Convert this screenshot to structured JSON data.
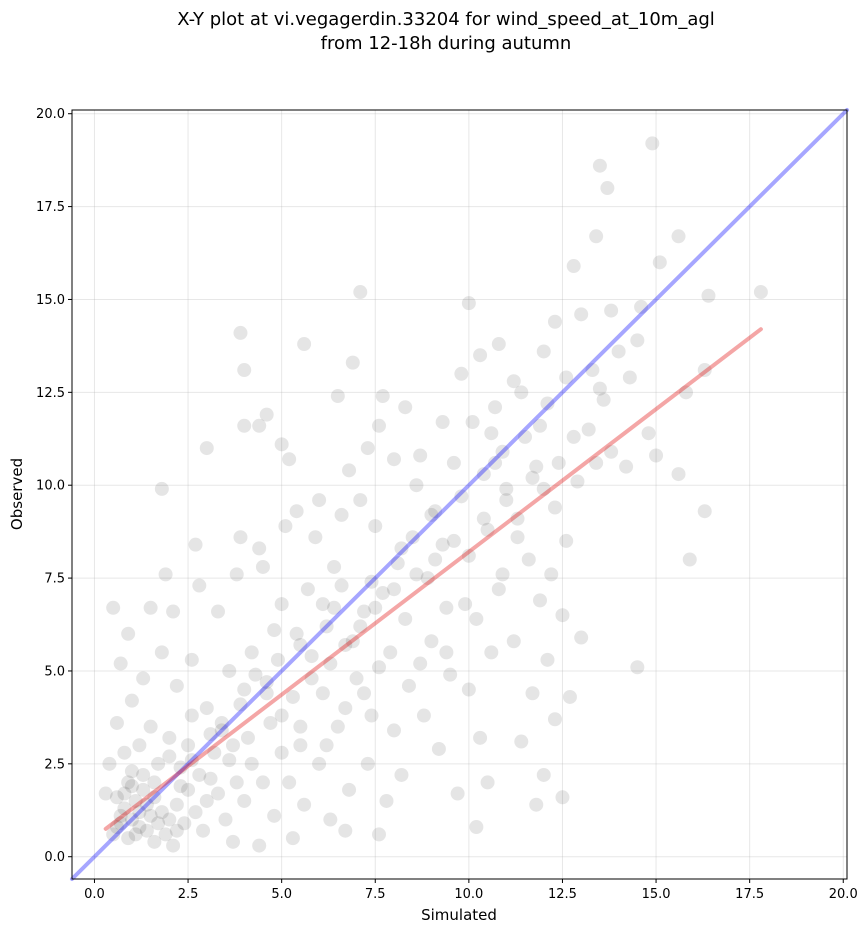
{
  "chart_data": {
    "type": "scatter",
    "title_lines": [
      "X-Y plot at vi.vegagerdin.33204 for wind_speed_at_10m_agl",
      "from 12-18h during autumn"
    ],
    "xlabel": "Simulated",
    "ylabel": "Observed",
    "xlim": [
      -0.6,
      20.1
    ],
    "ylim": [
      -0.6,
      20.1
    ],
    "xticks": [
      0.0,
      2.5,
      5.0,
      7.5,
      10.0,
      12.5,
      15.0,
      17.5,
      20.0
    ],
    "yticks": [
      0.0,
      2.5,
      5.0,
      7.5,
      10.0,
      12.5,
      15.0,
      17.5,
      20.0
    ],
    "tick_labels": [
      "0.0",
      "2.5",
      "5.0",
      "7.5",
      "10.0",
      "12.5",
      "15.0",
      "17.5",
      "20.0"
    ],
    "grid": true,
    "point_color": "#000000",
    "point_alpha": 0.1,
    "reference_line": {
      "color": "#0000ff",
      "alpha": 0.35,
      "x": [
        -0.6,
        20.1
      ],
      "y": [
        -0.6,
        20.1
      ]
    },
    "fit_line": {
      "color": "#e00000",
      "alpha": 0.35,
      "x": [
        0.3,
        17.8
      ],
      "y": [
        0.75,
        14.2
      ]
    },
    "points": [
      [
        1.0,
        1.0
      ],
      [
        1.2,
        0.8
      ],
      [
        0.8,
        1.3
      ],
      [
        1.5,
        1.1
      ],
      [
        1.1,
        1.5
      ],
      [
        0.7,
        0.9
      ],
      [
        1.3,
        1.8
      ],
      [
        1.8,
        1.2
      ],
      [
        2.0,
        1.0
      ],
      [
        0.9,
        2.0
      ],
      [
        1.4,
        0.7
      ],
      [
        1.6,
        1.6
      ],
      [
        2.2,
        1.4
      ],
      [
        1.0,
        2.3
      ],
      [
        0.6,
        1.6
      ],
      [
        2.5,
        1.8
      ],
      [
        1.7,
        2.5
      ],
      [
        0.5,
        0.6
      ],
      [
        1.9,
        0.6
      ],
      [
        2.4,
        0.9
      ],
      [
        1.2,
        3.0
      ],
      [
        0.8,
        2.8
      ],
      [
        2.8,
        2.2
      ],
      [
        1.5,
        3.5
      ],
      [
        2.0,
        3.2
      ],
      [
        3.0,
        1.5
      ],
      [
        0.6,
        3.6
      ],
      [
        1.0,
        4.2
      ],
      [
        2.6,
        3.8
      ],
      [
        3.2,
        2.8
      ],
      [
        3.5,
        1.0
      ],
      [
        3.8,
        2.0
      ],
      [
        1.3,
        4.8
      ],
      [
        2.2,
        4.6
      ],
      [
        0.7,
        5.2
      ],
      [
        1.8,
        5.5
      ],
      [
        3.0,
        4.0
      ],
      [
        3.4,
        3.4
      ],
      [
        4.0,
        1.5
      ],
      [
        4.2,
        2.5
      ],
      [
        0.5,
        6.7
      ],
      [
        0.9,
        6.0
      ],
      [
        1.5,
        6.7
      ],
      [
        2.1,
        6.6
      ],
      [
        1.9,
        7.6
      ],
      [
        1.8,
        9.9
      ],
      [
        2.8,
        7.3
      ],
      [
        3.3,
        6.6
      ],
      [
        3.8,
        7.6
      ],
      [
        3.9,
        8.6
      ],
      [
        4.4,
        8.3
      ],
      [
        4.5,
        7.8
      ],
      [
        5.0,
        6.8
      ],
      [
        4.8,
        6.1
      ],
      [
        4.2,
        5.5
      ],
      [
        4.6,
        4.7
      ],
      [
        5.0,
        3.8
      ],
      [
        5.5,
        3.0
      ],
      [
        5.2,
        2.0
      ],
      [
        4.8,
        1.1
      ],
      [
        5.6,
        1.4
      ],
      [
        6.0,
        2.5
      ],
      [
        6.3,
        1.0
      ],
      [
        6.8,
        1.8
      ],
      [
        6.5,
        3.5
      ],
      [
        6.1,
        4.4
      ],
      [
        5.8,
        5.4
      ],
      [
        6.2,
        6.2
      ],
      [
        5.7,
        7.2
      ],
      [
        6.4,
        7.8
      ],
      [
        5.9,
        8.6
      ],
      [
        6.6,
        9.2
      ],
      [
        5.1,
        8.9
      ],
      [
        5.4,
        9.3
      ],
      [
        6.0,
        9.6
      ],
      [
        6.9,
        5.8
      ],
      [
        7.2,
        6.6
      ],
      [
        7.0,
        4.8
      ],
      [
        7.4,
        3.8
      ],
      [
        7.3,
        2.5
      ],
      [
        7.8,
        1.5
      ],
      [
        7.6,
        0.6
      ],
      [
        8.2,
        2.2
      ],
      [
        8.0,
        3.4
      ],
      [
        8.4,
        4.6
      ],
      [
        7.9,
        5.5
      ],
      [
        8.3,
        6.4
      ],
      [
        7.7,
        7.1
      ],
      [
        8.1,
        7.9
      ],
      [
        8.5,
        8.6
      ],
      [
        7.5,
        8.9
      ],
      [
        7.1,
        9.6
      ],
      [
        6.8,
        10.4
      ],
      [
        7.3,
        11.0
      ],
      [
        7.7,
        12.4
      ],
      [
        7.6,
        11.6
      ],
      [
        8.0,
        10.7
      ],
      [
        8.6,
        10.0
      ],
      [
        9.0,
        9.2
      ],
      [
        9.3,
        8.4
      ],
      [
        8.9,
        7.5
      ],
      [
        9.4,
        6.7
      ],
      [
        9.0,
        5.8
      ],
      [
        9.5,
        4.9
      ],
      [
        8.8,
        3.8
      ],
      [
        9.2,
        2.9
      ],
      [
        9.7,
        1.7
      ],
      [
        10.2,
        0.8
      ],
      [
        10.5,
        2.0
      ],
      [
        10.3,
        3.2
      ],
      [
        10.0,
        4.5
      ],
      [
        10.6,
        5.5
      ],
      [
        10.2,
        6.4
      ],
      [
        10.8,
        7.2
      ],
      [
        10.0,
        8.1
      ],
      [
        10.5,
        8.8
      ],
      [
        11.0,
        9.6
      ],
      [
        10.4,
        10.3
      ],
      [
        10.9,
        10.9
      ],
      [
        10.1,
        11.7
      ],
      [
        10.7,
        12.1
      ],
      [
        11.2,
        12.8
      ],
      [
        10.3,
        13.5
      ],
      [
        10.0,
        14.9
      ],
      [
        10.8,
        13.8
      ],
      [
        11.5,
        11.3
      ],
      [
        11.8,
        10.5
      ],
      [
        11.3,
        9.1
      ],
      [
        11.6,
        8.0
      ],
      [
        11.9,
        6.9
      ],
      [
        11.2,
        5.8
      ],
      [
        11.7,
        4.4
      ],
      [
        11.4,
        3.1
      ],
      [
        11.8,
        1.4
      ],
      [
        12.0,
        2.2
      ],
      [
        12.3,
        3.7
      ],
      [
        12.1,
        5.3
      ],
      [
        12.5,
        6.5
      ],
      [
        12.2,
        7.6
      ],
      [
        12.6,
        8.5
      ],
      [
        12.0,
        9.9
      ],
      [
        12.4,
        10.6
      ],
      [
        12.8,
        11.3
      ],
      [
        12.1,
        12.2
      ],
      [
        12.6,
        12.9
      ],
      [
        12.0,
        13.6
      ],
      [
        12.3,
        14.4
      ],
      [
        12.8,
        15.9
      ],
      [
        13.0,
        14.6
      ],
      [
        13.3,
        13.1
      ],
      [
        13.6,
        12.3
      ],
      [
        13.2,
        11.5
      ],
      [
        13.8,
        10.9
      ],
      [
        13.5,
        12.6
      ],
      [
        13.8,
        14.7
      ],
      [
        13.4,
        16.7
      ],
      [
        13.5,
        18.6
      ],
      [
        13.7,
        18.0
      ],
      [
        14.0,
        13.6
      ],
      [
        14.3,
        12.9
      ],
      [
        14.2,
        10.5
      ],
      [
        14.8,
        11.4
      ],
      [
        14.5,
        13.9
      ],
      [
        14.6,
        14.8
      ],
      [
        15.1,
        16.0
      ],
      [
        14.9,
        19.2
      ],
      [
        15.6,
        16.7
      ],
      [
        15.8,
        12.5
      ],
      [
        15.6,
        10.3
      ],
      [
        15.9,
        8.0
      ],
      [
        16.3,
        9.3
      ],
      [
        16.3,
        13.1
      ],
      [
        16.4,
        15.1
      ],
      [
        17.8,
        15.2
      ],
      [
        15.0,
        10.8
      ],
      [
        14.5,
        5.1
      ],
      [
        12.7,
        4.3
      ],
      [
        12.5,
        1.6
      ],
      [
        13.0,
        5.9
      ],
      [
        9.8,
        13.0
      ],
      [
        8.3,
        12.1
      ],
      [
        7.1,
        15.2
      ],
      [
        6.9,
        13.3
      ],
      [
        5.6,
        13.8
      ],
      [
        3.9,
        14.1
      ],
      [
        4.0,
        13.1
      ],
      [
        4.0,
        11.6
      ],
      [
        4.6,
        11.9
      ],
      [
        4.4,
        11.6
      ],
      [
        5.0,
        11.1
      ],
      [
        5.2,
        10.7
      ],
      [
        6.5,
        12.4
      ],
      [
        3.0,
        11.0
      ],
      [
        2.7,
        8.4
      ],
      [
        2.6,
        5.3
      ],
      [
        3.6,
        5.0
      ],
      [
        0.4,
        2.5
      ],
      [
        0.3,
        1.7
      ],
      [
        0.9,
        0.5
      ],
      [
        1.6,
        0.4
      ],
      [
        2.1,
        0.3
      ],
      [
        2.9,
        0.7
      ],
      [
        3.7,
        0.4
      ],
      [
        4.4,
        0.3
      ],
      [
        5.3,
        0.5
      ],
      [
        6.7,
        0.7
      ],
      [
        2.3,
        2.4
      ],
      [
        1.1,
        0.6
      ],
      [
        0.6,
        0.8
      ],
      [
        1.4,
        1.4
      ],
      [
        1.7,
        0.9
      ],
      [
        0.8,
        1.7
      ],
      [
        2.7,
        1.2
      ],
      [
        3.1,
        2.1
      ],
      [
        3.6,
        2.6
      ],
      [
        4.1,
        3.2
      ],
      [
        4.7,
        3.6
      ],
      [
        5.3,
        4.3
      ],
      [
        5.8,
        4.8
      ],
      [
        6.3,
        5.2
      ],
      [
        6.7,
        5.7
      ],
      [
        7.1,
        6.2
      ],
      [
        7.5,
        6.7
      ],
      [
        8.0,
        7.2
      ],
      [
        8.6,
        7.6
      ],
      [
        9.1,
        8.0
      ],
      [
        9.6,
        8.5
      ],
      [
        10.4,
        9.1
      ],
      [
        11.0,
        9.9
      ],
      [
        11.7,
        10.2
      ],
      [
        2.3,
        1.9
      ],
      [
        3.4,
        3.6
      ],
      [
        4.6,
        4.4
      ],
      [
        5.5,
        5.7
      ],
      [
        6.4,
        6.7
      ],
      [
        7.4,
        7.4
      ],
      [
        8.2,
        8.3
      ],
      [
        9.1,
        9.3
      ],
      [
        9.8,
        9.7
      ],
      [
        10.7,
        10.6
      ],
      [
        1.3,
        2.2
      ],
      [
        2.0,
        2.7
      ],
      [
        2.5,
        3.0
      ],
      [
        3.1,
        3.3
      ],
      [
        3.9,
        4.1
      ],
      [
        4.3,
        4.9
      ],
      [
        4.9,
        5.3
      ],
      [
        5.4,
        6.0
      ],
      [
        6.1,
        6.8
      ],
      [
        6.6,
        7.3
      ],
      [
        0.7,
        1.1
      ],
      [
        1.0,
        1.9
      ],
      [
        1.2,
        1.2
      ],
      [
        1.6,
        2.0
      ],
      [
        2.2,
        0.7
      ],
      [
        2.6,
        2.6
      ],
      [
        3.3,
        1.7
      ],
      [
        3.7,
        3.0
      ],
      [
        4.0,
        4.5
      ],
      [
        4.5,
        2.0
      ],
      [
        5.0,
        2.8
      ],
      [
        5.5,
        3.5
      ],
      [
        6.2,
        3.0
      ],
      [
        6.7,
        4.0
      ],
      [
        7.2,
        4.4
      ],
      [
        7.6,
        5.1
      ],
      [
        8.7,
        5.2
      ],
      [
        9.4,
        5.5
      ],
      [
        9.9,
        6.8
      ],
      [
        10.9,
        7.6
      ],
      [
        11.3,
        8.6
      ],
      [
        12.3,
        9.4
      ],
      [
        12.9,
        10.1
      ],
      [
        13.4,
        10.6
      ],
      [
        11.9,
        11.6
      ],
      [
        11.4,
        12.5
      ],
      [
        10.6,
        11.4
      ],
      [
        9.6,
        10.6
      ],
      [
        9.3,
        11.7
      ],
      [
        8.7,
        10.8
      ]
    ]
  }
}
